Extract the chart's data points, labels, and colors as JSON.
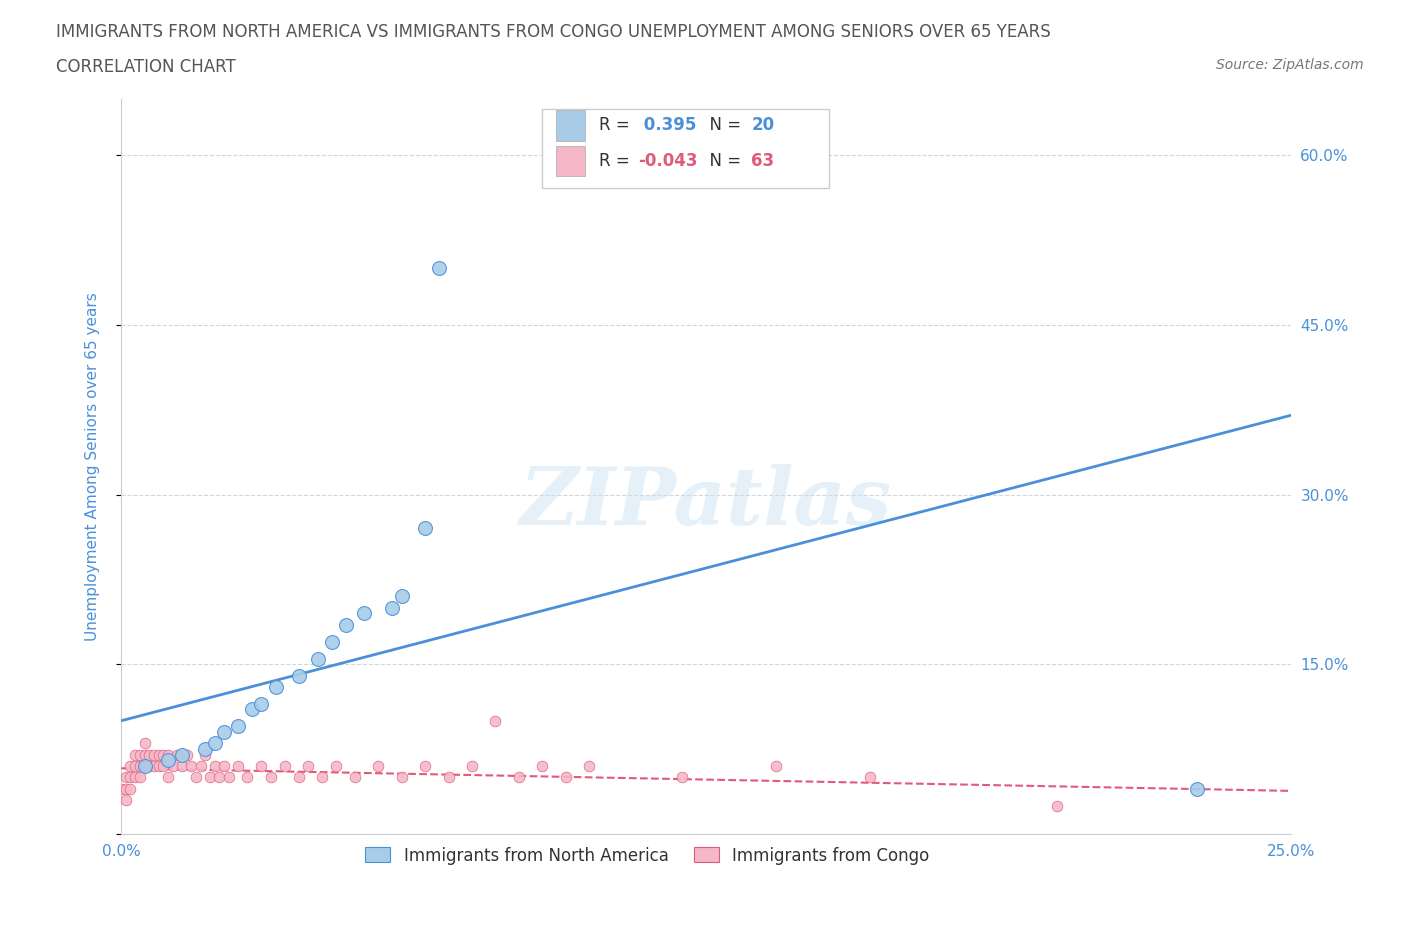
{
  "title_line1": "IMMIGRANTS FROM NORTH AMERICA VS IMMIGRANTS FROM CONGO UNEMPLOYMENT AMONG SENIORS OVER 65 YEARS",
  "title_line2": "CORRELATION CHART",
  "source": "Source: ZipAtlas.com",
  "ylabel": "Unemployment Among Seniors over 65 years",
  "xlim": [
    0.0,
    0.25
  ],
  "ylim": [
    0.0,
    0.65
  ],
  "yticks": [
    0.0,
    0.15,
    0.3,
    0.45,
    0.6
  ],
  "ytick_labels": [
    "",
    "15.0%",
    "30.0%",
    "45.0%",
    "60.0%"
  ],
  "xticks": [
    0.0,
    0.05,
    0.1,
    0.15,
    0.2,
    0.25
  ],
  "xtick_labels": [
    "0.0%",
    "",
    "",
    "",
    "",
    "25.0%"
  ],
  "blue_color": "#a8cce8",
  "blue_color_dark": "#4a90d9",
  "pink_color": "#f5b8c8",
  "pink_color_dark": "#e05a7a",
  "r_blue": 0.395,
  "n_blue": 20,
  "r_pink": -0.043,
  "n_pink": 63,
  "watermark": "ZIPatlas",
  "blue_scatter_x": [
    0.005,
    0.01,
    0.013,
    0.018,
    0.02,
    0.022,
    0.025,
    0.028,
    0.03,
    0.033,
    0.038,
    0.042,
    0.045,
    0.048,
    0.052,
    0.058,
    0.06,
    0.065,
    0.068,
    0.23
  ],
  "blue_scatter_y": [
    0.06,
    0.065,
    0.07,
    0.075,
    0.08,
    0.09,
    0.095,
    0.11,
    0.115,
    0.13,
    0.14,
    0.155,
    0.17,
    0.185,
    0.195,
    0.2,
    0.21,
    0.27,
    0.5,
    0.04
  ],
  "pink_scatter_x": [
    0.0,
    0.001,
    0.001,
    0.001,
    0.002,
    0.002,
    0.002,
    0.003,
    0.003,
    0.003,
    0.004,
    0.004,
    0.004,
    0.005,
    0.005,
    0.005,
    0.006,
    0.006,
    0.007,
    0.007,
    0.008,
    0.008,
    0.009,
    0.009,
    0.01,
    0.01,
    0.011,
    0.012,
    0.013,
    0.014,
    0.015,
    0.016,
    0.017,
    0.018,
    0.019,
    0.02,
    0.021,
    0.022,
    0.023,
    0.025,
    0.027,
    0.03,
    0.032,
    0.035,
    0.038,
    0.04,
    0.043,
    0.046,
    0.05,
    0.055,
    0.06,
    0.065,
    0.07,
    0.075,
    0.08,
    0.085,
    0.09,
    0.095,
    0.1,
    0.12,
    0.14,
    0.16,
    0.2
  ],
  "pink_scatter_y": [
    0.04,
    0.05,
    0.04,
    0.03,
    0.06,
    0.05,
    0.04,
    0.07,
    0.06,
    0.05,
    0.07,
    0.06,
    0.05,
    0.08,
    0.07,
    0.06,
    0.07,
    0.06,
    0.07,
    0.06,
    0.07,
    0.06,
    0.07,
    0.06,
    0.07,
    0.05,
    0.06,
    0.07,
    0.06,
    0.07,
    0.06,
    0.05,
    0.06,
    0.07,
    0.05,
    0.06,
    0.05,
    0.06,
    0.05,
    0.06,
    0.05,
    0.06,
    0.05,
    0.06,
    0.05,
    0.06,
    0.05,
    0.06,
    0.05,
    0.06,
    0.05,
    0.06,
    0.05,
    0.06,
    0.1,
    0.05,
    0.06,
    0.05,
    0.06,
    0.05,
    0.06,
    0.05,
    0.025
  ],
  "blue_line_x": [
    0.0,
    0.25
  ],
  "blue_line_y": [
    0.1,
    0.37
  ],
  "pink_line_x": [
    0.0,
    0.25
  ],
  "pink_line_y": [
    0.058,
    0.038
  ],
  "legend_label_blue": "Immigrants from North America",
  "legend_label_pink": "Immigrants from Congo",
  "background_color": "#ffffff",
  "grid_color": "#cccccc",
  "title_color": "#555555",
  "axis_label_color": "#4a90d9",
  "tick_color": "#4a90d9"
}
